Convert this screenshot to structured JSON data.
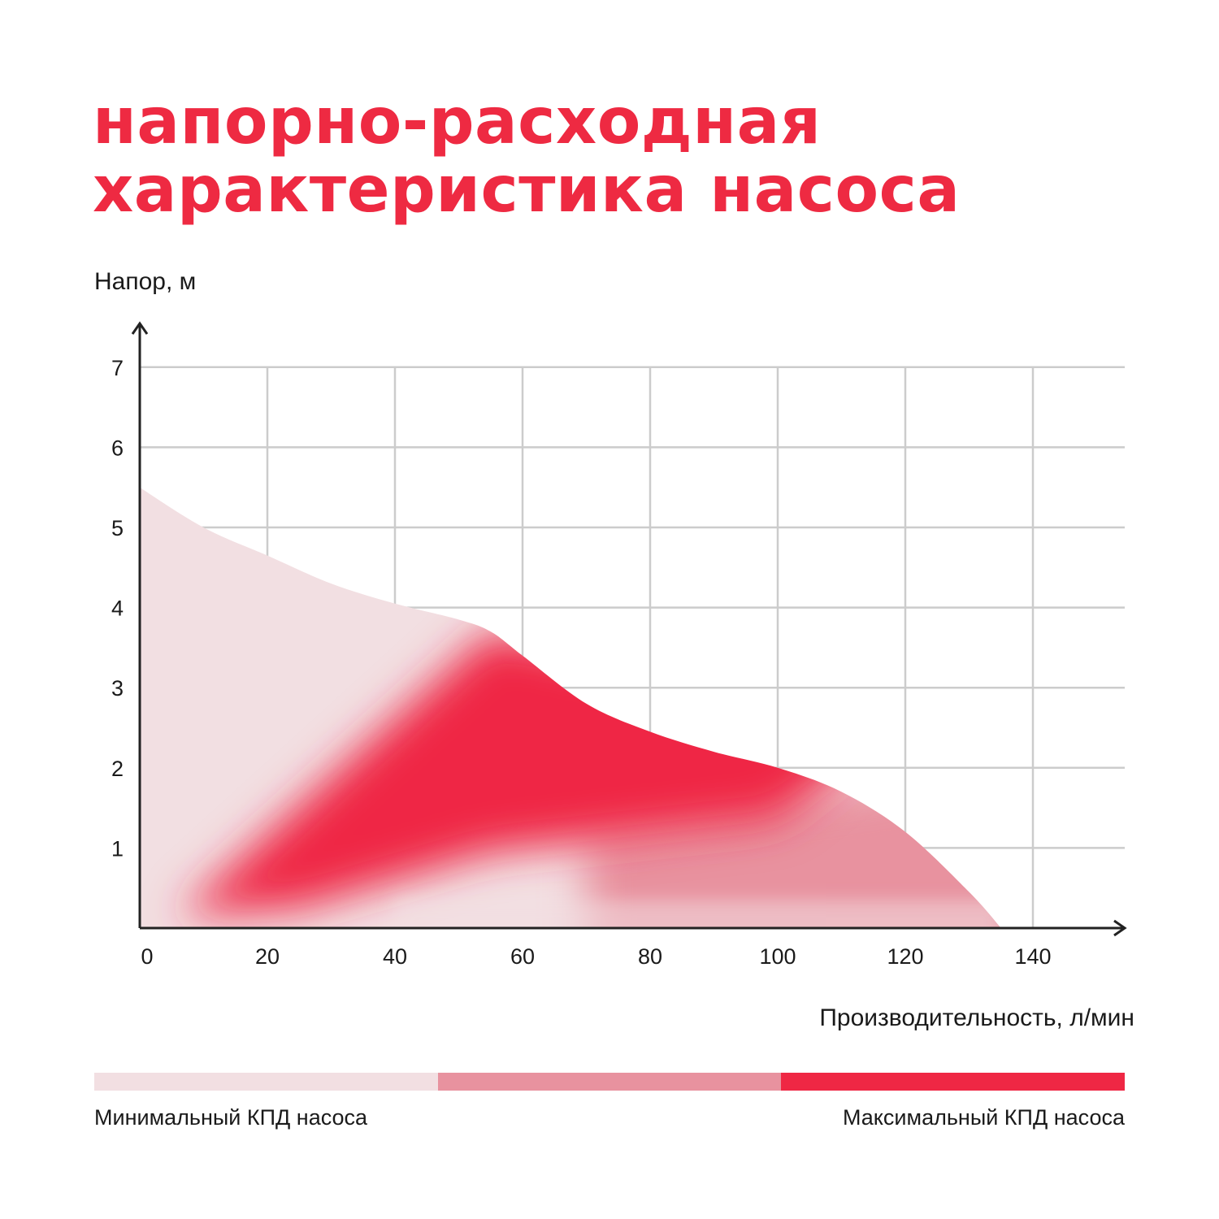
{
  "title": {
    "line1": "напорно-расходная",
    "line2": "характеристика насоса",
    "color": "#ee2a42"
  },
  "chart_data": {
    "type": "area",
    "ylabel": "Напор, м",
    "xlabel": "Производительность, л/мин",
    "x_ticks": [
      0,
      20,
      40,
      60,
      80,
      100,
      120,
      140
    ],
    "y_ticks": [
      1,
      2,
      3,
      4,
      5,
      6,
      7
    ],
    "xlim": [
      0,
      155
    ],
    "ylim": [
      0,
      7.5
    ],
    "grid": true,
    "series": [
      {
        "x": [
          0,
          10,
          20,
          30,
          40,
          50,
          55,
          60,
          70,
          80,
          90,
          100,
          110,
          120,
          130,
          135
        ],
        "y": [
          5.5,
          5.0,
          4.65,
          4.3,
          4.05,
          3.85,
          3.7,
          3.4,
          2.8,
          2.45,
          2.2,
          2.0,
          1.7,
          1.2,
          0.45,
          0
        ]
      }
    ],
    "colors": {
      "min_efficiency": "#f2dfe2",
      "mid_efficiency": "#e8929f",
      "max_efficiency": "#ef2744",
      "grid": "#cccccc",
      "axis": "#222222"
    }
  },
  "legend": {
    "min_label": "Минимальный КПД насоса",
    "max_label": "Максимальный КПД насоса"
  }
}
